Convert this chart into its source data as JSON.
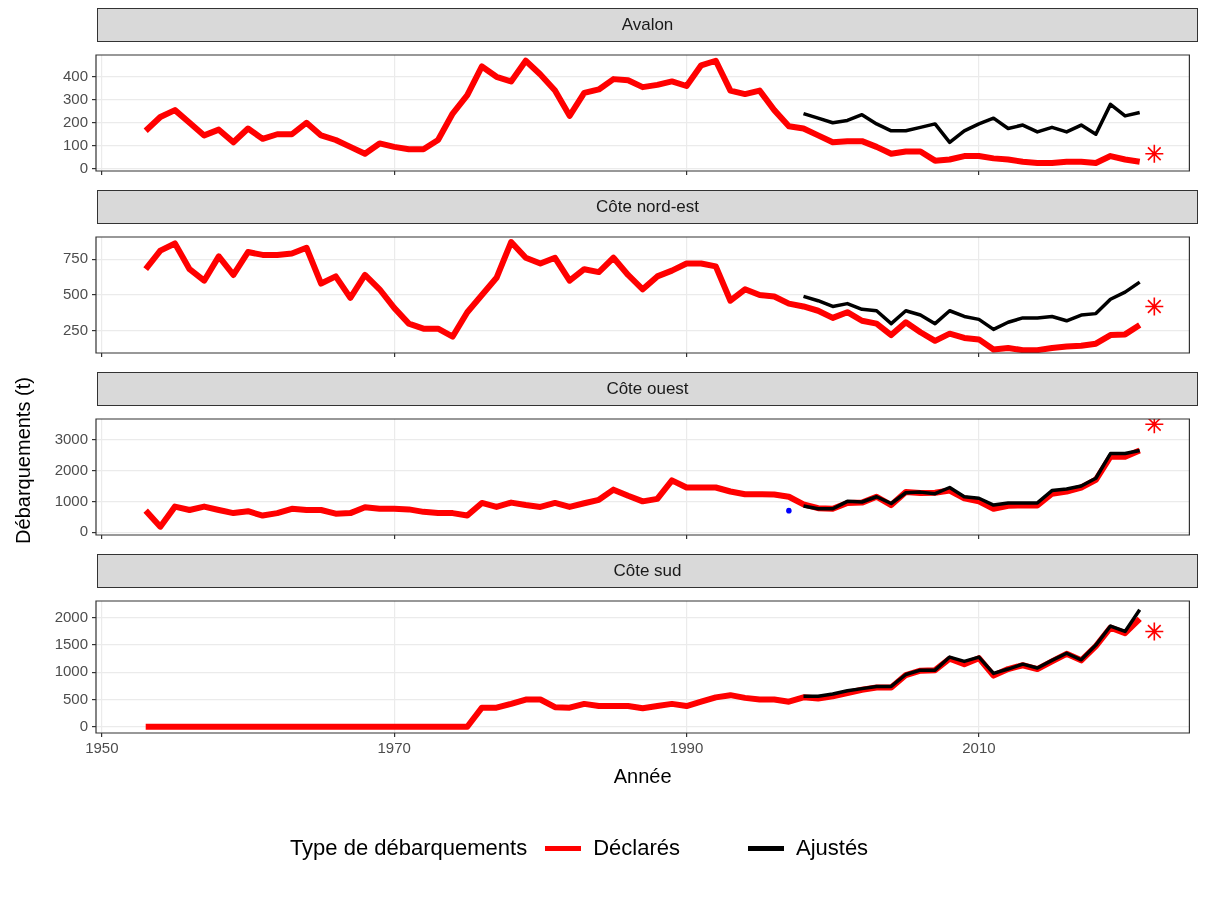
{
  "chart_data": [
    {
      "type": "line",
      "title": "Avalon",
      "x": [
        1953,
        1954,
        1955,
        1956,
        1957,
        1958,
        1959,
        1960,
        1961,
        1962,
        1963,
        1964,
        1965,
        1966,
        1967,
        1968,
        1969,
        1970,
        1971,
        1972,
        1973,
        1974,
        1975,
        1976,
        1977,
        1978,
        1979,
        1980,
        1981,
        1982,
        1983,
        1984,
        1985,
        1986,
        1987,
        1988,
        1989,
        1990,
        1991,
        1992,
        1993,
        1994,
        1995,
        1996,
        1997,
        1998,
        1999,
        2000,
        2001,
        2002,
        2003,
        2004,
        2005,
        2006,
        2007,
        2008,
        2009,
        2010,
        2011,
        2012,
        2013,
        2014,
        2015,
        2016,
        2017,
        2018,
        2019,
        2020,
        2021
      ],
      "series": [
        {
          "color": "#ff0000",
          "values": [
            165,
            225,
            255,
            200,
            145,
            170,
            115,
            175,
            130,
            150,
            150,
            200,
            145,
            125,
            95,
            65,
            110,
            95,
            85,
            85,
            125,
            240,
            320,
            445,
            400,
            380,
            470,
            410,
            340,
            230,
            330,
            345,
            390,
            385,
            355,
            365,
            380,
            360,
            450,
            470,
            340,
            325,
            340,
            255,
            185,
            175,
            145,
            115,
            120,
            120,
            95,
            65,
            75,
            75,
            35,
            40,
            55,
            55,
            45,
            40,
            30,
            25,
            25,
            30,
            30,
            25,
            55,
            40,
            30
          ]
        },
        {
          "color": "#000000",
          "x": [
            1998,
            1999,
            2000,
            2001,
            2002,
            2003,
            2004,
            2005,
            2006,
            2007,
            2008,
            2009,
            2010,
            2011,
            2012,
            2013,
            2014,
            2015,
            2016,
            2017,
            2018,
            2019,
            2020,
            2021
          ],
          "values": [
            240,
            220,
            200,
            210,
            235,
            195,
            165,
            165,
            180,
            195,
            115,
            165,
            195,
            220,
            175,
            190,
            160,
            180,
            160,
            190,
            150,
            280,
            230,
            245
          ]
        },
        {
          "type": "scatter",
          "marker": "cross",
          "color": "#ff0000",
          "x": [
            2022
          ],
          "values": [
            65
          ]
        }
      ],
      "xlim": [
        1949.6,
        2024.4
      ],
      "xticks": [
        1950,
        1970,
        1990,
        2010
      ],
      "ylim": [
        -10,
        495
      ],
      "yticks": [
        0,
        100,
        200,
        300,
        400
      ],
      "grid": true,
      "tick_labels": "y"
    },
    {
      "type": "line",
      "title": "Côte nord-est",
      "x": [
        1953,
        1954,
        1955,
        1956,
        1957,
        1958,
        1959,
        1960,
        1961,
        1962,
        1963,
        1964,
        1965,
        1966,
        1967,
        1968,
        1969,
        1970,
        1971,
        1972,
        1973,
        1974,
        1975,
        1976,
        1977,
        1978,
        1979,
        1980,
        1981,
        1982,
        1983,
        1984,
        1985,
        1986,
        1987,
        1988,
        1989,
        1990,
        1991,
        1992,
        1993,
        1994,
        1995,
        1996,
        1997,
        1998,
        1999,
        2000,
        2001,
        2002,
        2003,
        2004,
        2005,
        2006,
        2007,
        2008,
        2009,
        2010,
        2011,
        2012,
        2013,
        2014,
        2015,
        2016,
        2017,
        2018,
        2019,
        2020,
        2021
      ],
      "series": [
        {
          "color": "#ff0000",
          "values": [
            680,
            810,
            860,
            680,
            600,
            770,
            640,
            800,
            780,
            780,
            790,
            830,
            580,
            630,
            480,
            640,
            540,
            410,
            300,
            265,
            265,
            210,
            380,
            500,
            620,
            870,
            760,
            720,
            760,
            600,
            680,
            660,
            760,
            640,
            540,
            630,
            670,
            720,
            720,
            700,
            460,
            540,
            500,
            490,
            440,
            420,
            390,
            340,
            380,
            320,
            300,
            220,
            310,
            240,
            180,
            230,
            200,
            190,
            120,
            130,
            115,
            115,
            130,
            140,
            145,
            160,
            220,
            225,
            290
          ]
        },
        {
          "color": "#000000",
          "x": [
            1998,
            1999,
            2000,
            2001,
            2002,
            2003,
            2004,
            2005,
            2006,
            2007,
            2008,
            2009,
            2010,
            2011,
            2012,
            2013,
            2014,
            2015,
            2016,
            2017,
            2018,
            2019,
            2020,
            2021
          ],
          "values": [
            490,
            460,
            420,
            440,
            400,
            390,
            300,
            390,
            360,
            300,
            390,
            350,
            330,
            260,
            310,
            340,
            340,
            350,
            320,
            360,
            370,
            470,
            520,
            590
          ]
        },
        {
          "type": "scatter",
          "marker": "cross",
          "color": "#ff0000",
          "x": [
            2022
          ],
          "values": [
            420
          ]
        }
      ],
      "xlim": [
        1949.6,
        2024.4
      ],
      "xticks": [
        1950,
        1970,
        1990,
        2010
      ],
      "ylim": [
        95,
        905
      ],
      "yticks": [
        250,
        500,
        750
      ],
      "grid": true,
      "tick_labels": "y"
    },
    {
      "type": "line",
      "title": "Côte ouest",
      "ylabel": "Débarquements (t)",
      "x": [
        1953,
        1954,
        1955,
        1956,
        1957,
        1958,
        1959,
        1960,
        1961,
        1962,
        1963,
        1964,
        1965,
        1966,
        1967,
        1968,
        1969,
        1970,
        1971,
        1972,
        1973,
        1974,
        1975,
        1976,
        1977,
        1978,
        1979,
        1980,
        1981,
        1982,
        1983,
        1984,
        1985,
        1986,
        1987,
        1988,
        1989,
        1990,
        1991,
        1992,
        1993,
        1994,
        1995,
        1996,
        1997,
        1998,
        1999,
        2000,
        2001,
        2002,
        2003,
        2004,
        2005,
        2006,
        2007,
        2008,
        2009,
        2010,
        2011,
        2012,
        2013,
        2014,
        2015,
        2016,
        2017,
        2018,
        2019,
        2020,
        2021
      ],
      "series": [
        {
          "color": "#ff0000",
          "values": [
            700,
            180,
            830,
            720,
            830,
            720,
            620,
            680,
            540,
            620,
            760,
            720,
            720,
            600,
            620,
            810,
            760,
            760,
            740,
            660,
            620,
            620,
            540,
            950,
            820,
            960,
            880,
            820,
            950,
            820,
            940,
            1050,
            1380,
            1180,
            1000,
            1080,
            1680,
            1450,
            1450,
            1450,
            1320,
            1230,
            1230,
            1220,
            1150,
            900,
            780,
            760,
            950,
            960,
            1150,
            880,
            1300,
            1270,
            1280,
            1350,
            1100,
            1000,
            760,
            860,
            870,
            870,
            1250,
            1320,
            1450,
            1700,
            2450,
            2450,
            2650
          ]
        },
        {
          "color": "#000000",
          "x": [
            1998,
            1999,
            2000,
            2001,
            2002,
            2003,
            2004,
            2005,
            2006,
            2007,
            2008,
            2009,
            2010,
            2011,
            2012,
            2013,
            2014,
            2015,
            2016,
            2017,
            2018,
            2019,
            2020,
            2021
          ],
          "values": [
            850,
            760,
            760,
            1000,
            980,
            1150,
            930,
            1280,
            1300,
            1250,
            1450,
            1150,
            1100,
            880,
            950,
            950,
            950,
            1350,
            1400,
            1500,
            1750,
            2550,
            2550,
            2650
          ]
        },
        {
          "type": "scatter",
          "marker": "cross",
          "color": "#ff0000",
          "x": [
            2022
          ],
          "values": [
            3500
          ]
        },
        {
          "type": "scatter",
          "marker": "circle",
          "color": "#0000ff",
          "x": [
            1997
          ],
          "values": [
            700
          ]
        }
      ],
      "xlim": [
        1949.6,
        2024.4
      ],
      "xticks": [
        1950,
        1970,
        1990,
        2010
      ],
      "ylim": [
        -90,
        3670
      ],
      "yticks": [
        0,
        1000,
        2000,
        3000
      ],
      "grid": true,
      "tick_labels": "y"
    },
    {
      "type": "line",
      "title": "Côte sud",
      "xlabel": "Année",
      "legend_title": "Type de débarquements",
      "legend": "bottom",
      "x": [
        1953,
        1954,
        1955,
        1956,
        1957,
        1958,
        1959,
        1960,
        1961,
        1962,
        1963,
        1964,
        1965,
        1966,
        1967,
        1968,
        1969,
        1970,
        1971,
        1972,
        1973,
        1974,
        1975,
        1976,
        1977,
        1978,
        1979,
        1980,
        1981,
        1982,
        1983,
        1984,
        1985,
        1986,
        1987,
        1988,
        1989,
        1990,
        1991,
        1992,
        1993,
        1994,
        1995,
        1996,
        1997,
        1998,
        1999,
        2000,
        2001,
        2002,
        2003,
        2004,
        2005,
        2006,
        2007,
        2008,
        2009,
        2010,
        2011,
        2012,
        2013,
        2014,
        2015,
        2016,
        2017,
        2018,
        2019,
        2020,
        2021
      ],
      "series": [
        {
          "name": "Déclarés",
          "color": "#ff0000",
          "values": [
            0,
            0,
            0,
            0,
            0,
            0,
            0,
            0,
            0,
            0,
            0,
            0,
            0,
            0,
            0,
            0,
            0,
            0,
            0,
            0,
            0,
            0,
            0,
            350,
            350,
            420,
            500,
            500,
            360,
            350,
            420,
            380,
            380,
            380,
            340,
            380,
            420,
            380,
            460,
            540,
            580,
            530,
            500,
            500,
            460,
            540,
            520,
            560,
            620,
            680,
            720,
            720,
            950,
            1030,
            1040,
            1250,
            1150,
            1260,
            940,
            1060,
            1130,
            1060,
            1200,
            1340,
            1220,
            1480,
            1820,
            1720,
            1980
          ]
        },
        {
          "name": "Ajustés",
          "color": "#000000",
          "x": [
            1998,
            1999,
            2000,
            2001,
            2002,
            2003,
            2004,
            2005,
            2006,
            2007,
            2008,
            2009,
            2010,
            2011,
            2012,
            2013,
            2014,
            2015,
            2016,
            2017,
            2018,
            2019,
            2020,
            2021
          ],
          "values": [
            560,
            560,
            600,
            660,
            700,
            740,
            740,
            960,
            1040,
            1040,
            1280,
            1200,
            1280,
            980,
            1060,
            1150,
            1080,
            1220,
            1350,
            1230,
            1500,
            1850,
            1750,
            2150
          ]
        },
        {
          "type": "scatter",
          "marker": "cross",
          "color": "#ff0000",
          "x": [
            2022
          ],
          "values": [
            1750
          ]
        }
      ],
      "xlim": [
        1949.6,
        2024.4
      ],
      "xticks": [
        1950,
        1970,
        1990,
        2010
      ],
      "ylim": [
        -115,
        2310
      ],
      "yticks": [
        0,
        500,
        1000,
        1500,
        2000
      ],
      "grid": true
    }
  ]
}
